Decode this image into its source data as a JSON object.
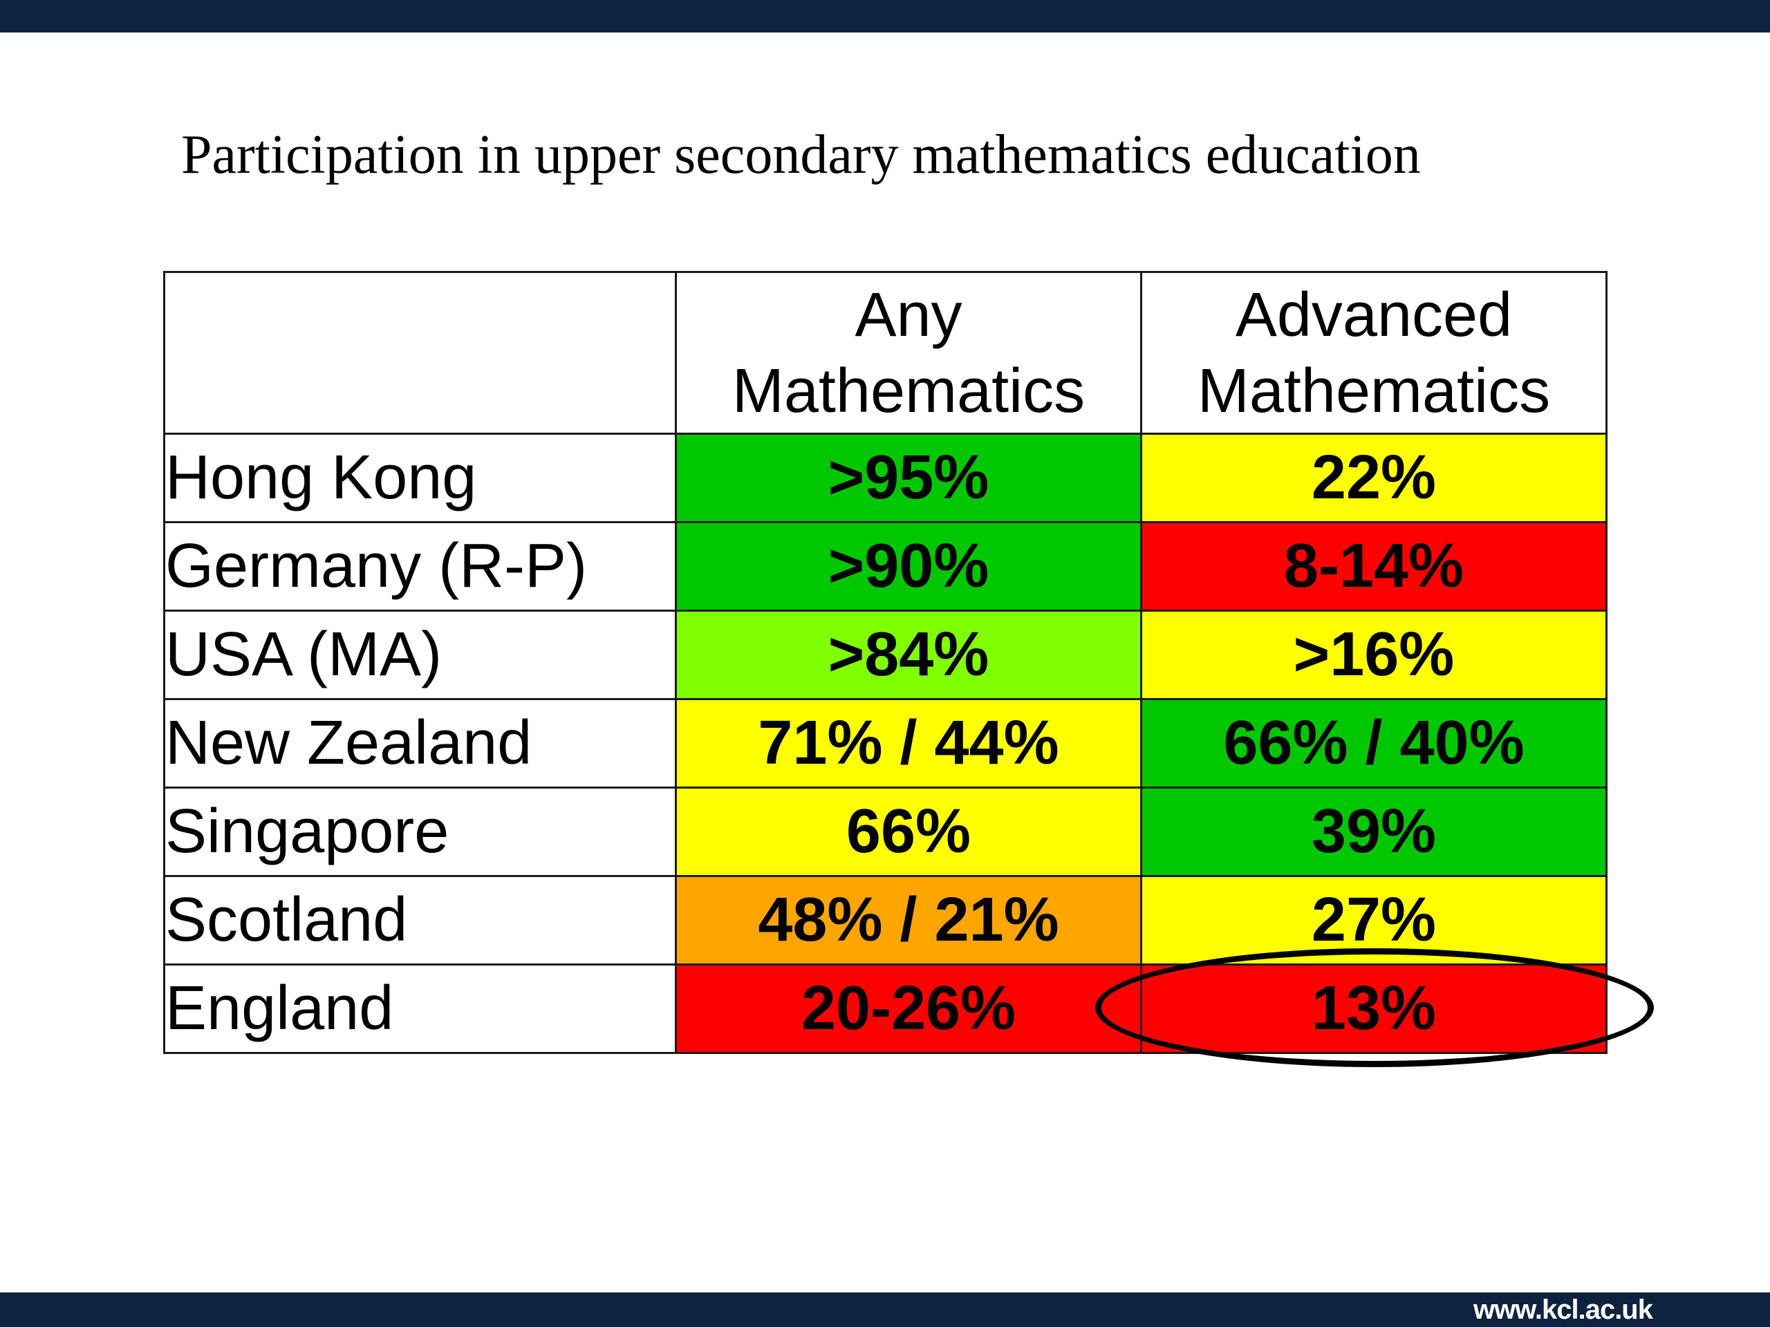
{
  "slide": {
    "title": "Participation in upper secondary mathematics education",
    "footer_url": "www.kcl.ac.uk"
  },
  "table": {
    "headers": {
      "corner": "",
      "any": [
        "Any",
        "Mathematics"
      ],
      "advanced": [
        "Advanced",
        "Mathematics"
      ]
    },
    "rows": [
      {
        "country": "Hong Kong",
        "any": ">95%",
        "any_color": "#00c800",
        "advanced": "22%",
        "advanced_color": "#ffff00"
      },
      {
        "country": "Germany (R-P)",
        "any": ">90%",
        "any_color": "#00c800",
        "advanced": "8-14%",
        "advanced_color": "#ff0000"
      },
      {
        "country": "USA (MA)",
        "any": ">84%",
        "any_color": "#80ff00",
        "advanced": ">16%",
        "advanced_color": "#ffff00"
      },
      {
        "country": "New Zealand",
        "any": "71% / 44%",
        "any_color": "#ffff00",
        "advanced": "66% / 40%",
        "advanced_color": "#00c800"
      },
      {
        "country": "Singapore",
        "any": "66%",
        "any_color": "#ffff00",
        "advanced": "39%",
        "advanced_color": "#00c800"
      },
      {
        "country": "Scotland",
        "any": "48% / 21%",
        "any_color": "#ffa500",
        "advanced": "27%",
        "advanced_color": "#ffff00"
      },
      {
        "country": "England",
        "any": "20-26%",
        "any_color": "#ff0000",
        "advanced": "13%",
        "advanced_color": "#ff0000"
      }
    ]
  },
  "annotation": {
    "highlight": "England advanced mathematics cell circled"
  },
  "colors": {
    "bar": "#0d2340"
  }
}
